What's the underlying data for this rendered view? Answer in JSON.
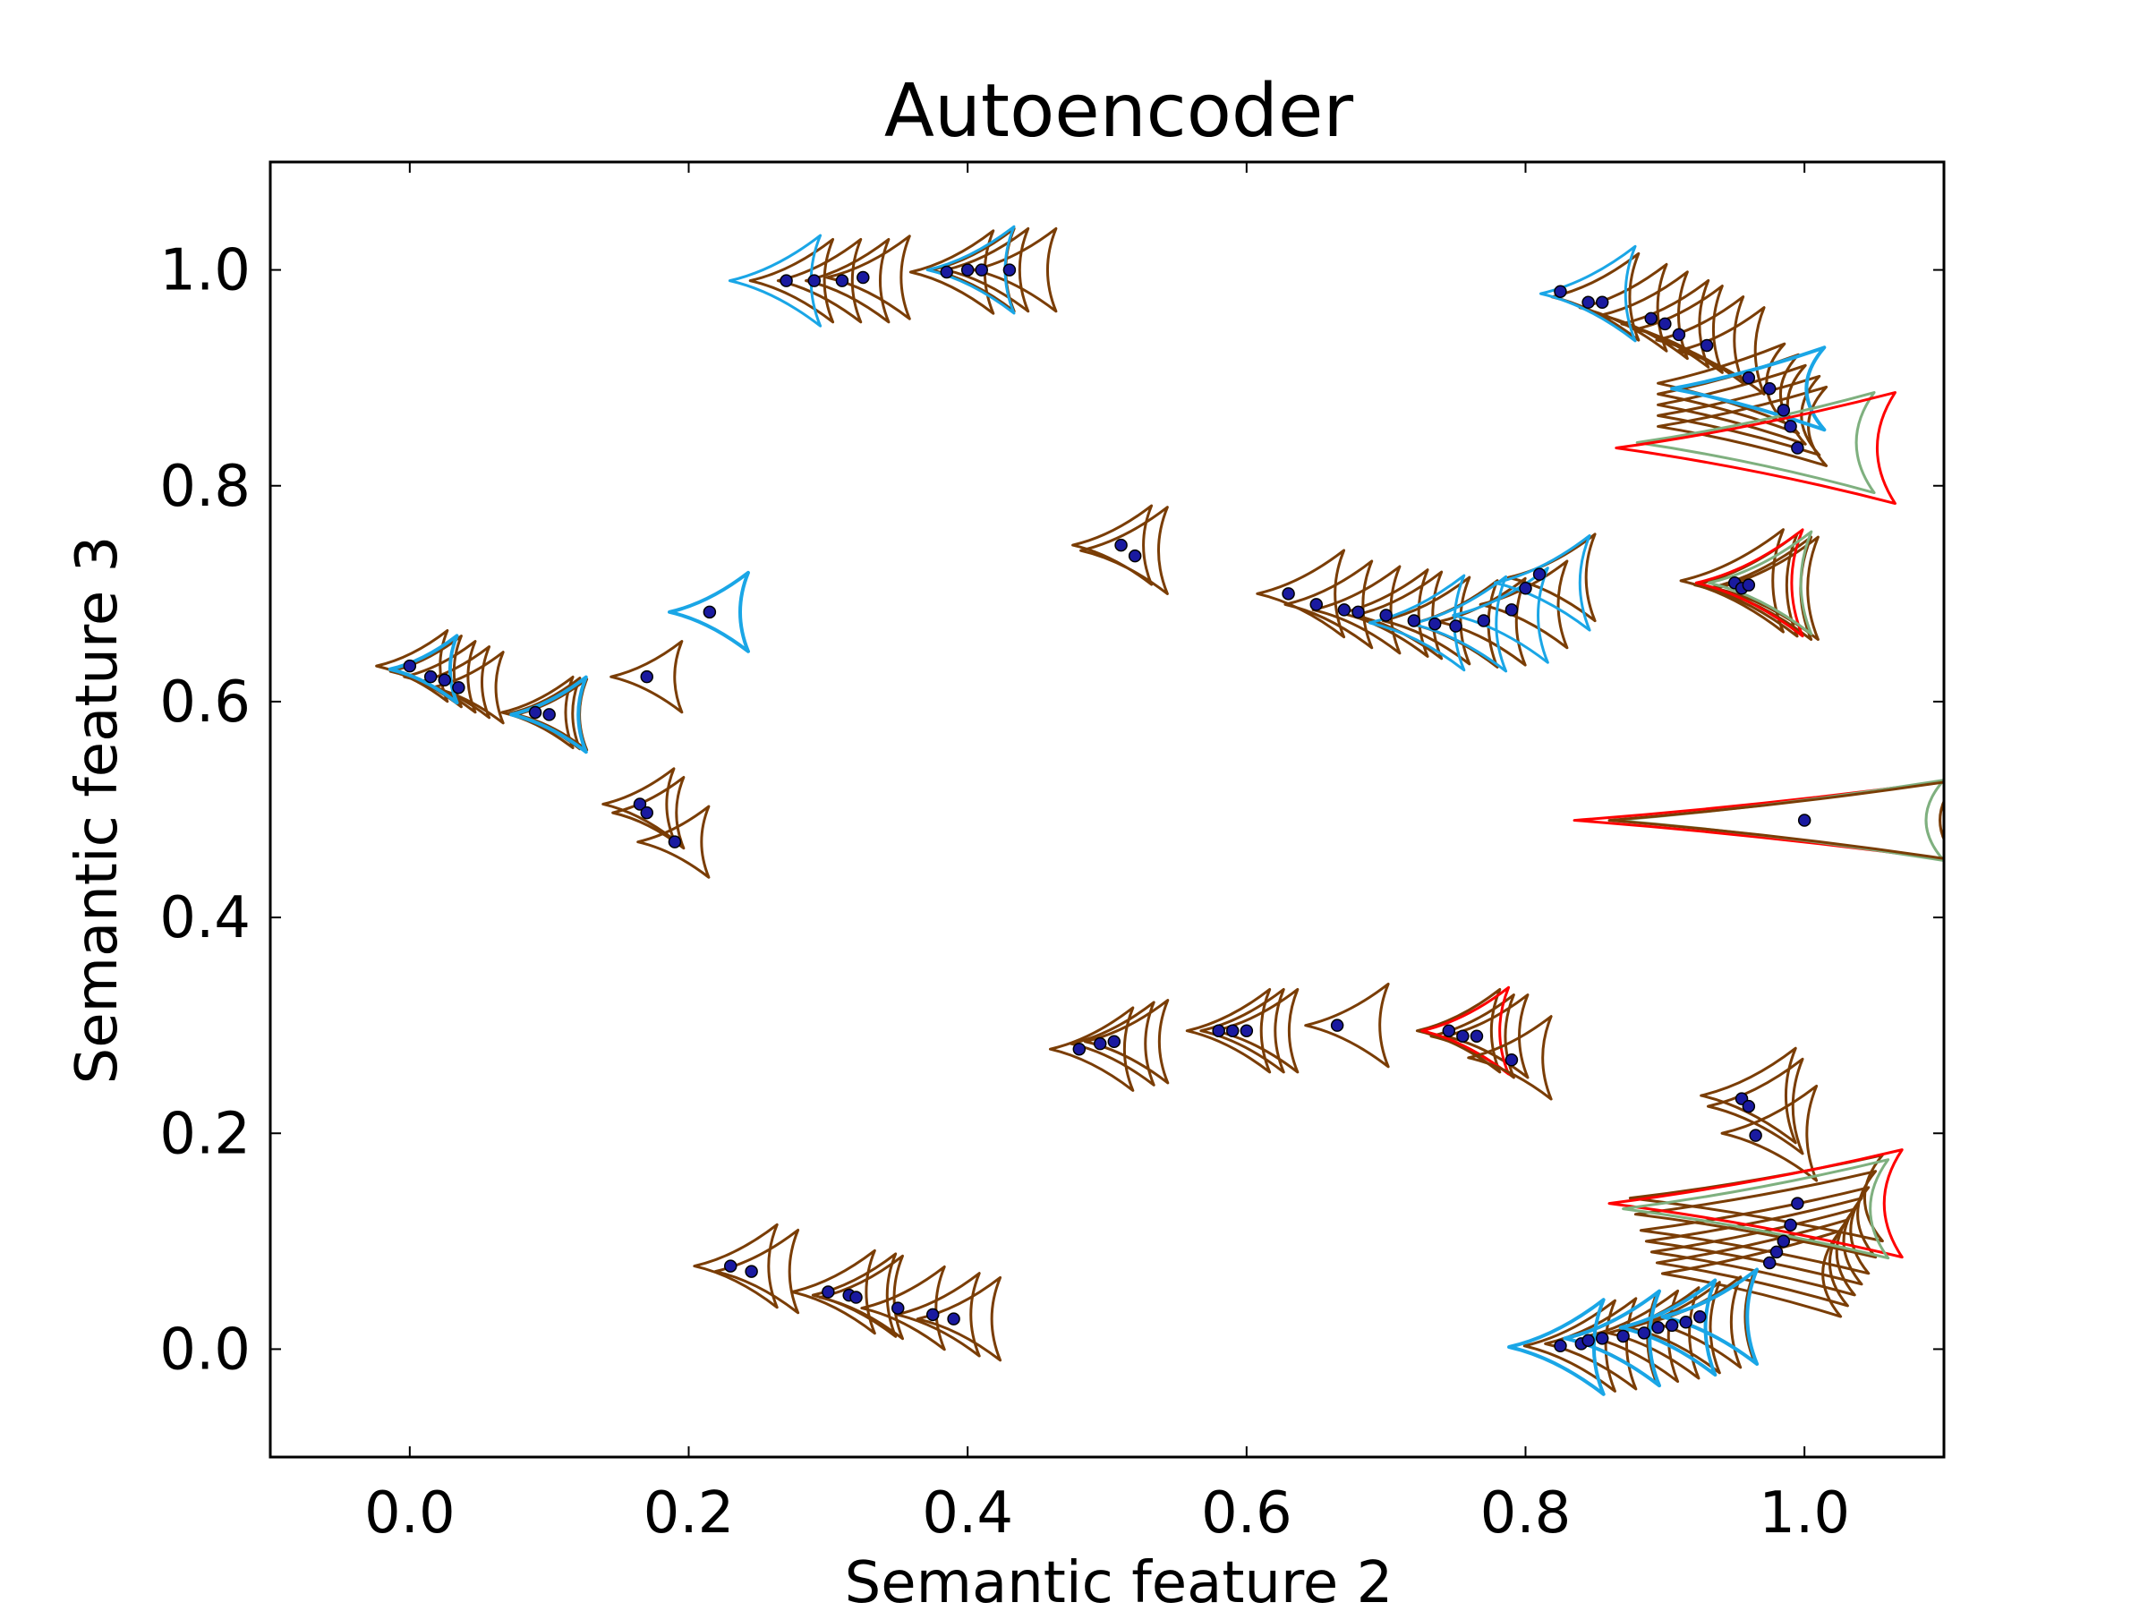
{
  "chart_data": {
    "type": "scatter",
    "title": "Autoencoder",
    "xlabel": "Semantic feature 2",
    "ylabel": "Semantic feature 3",
    "xlim": [
      -0.1,
      1.1
    ],
    "ylim": [
      -0.1,
      1.1
    ],
    "xticks": [
      0.0,
      0.2,
      0.4,
      0.6,
      0.8,
      1.0
    ],
    "yticks": [
      0.0,
      0.2,
      0.4,
      0.6,
      0.8,
      1.0
    ],
    "xtick_labels": [
      "0.0",
      "0.2",
      "0.4",
      "0.6",
      "0.8",
      "1.0"
    ],
    "ytick_labels": [
      "0.0",
      "0.2",
      "0.4",
      "0.6",
      "0.8",
      "1.0"
    ],
    "grid": false,
    "colors": {
      "point": "#1a1aa0",
      "contour_brown": "#7a3d05",
      "contour_blue": "#1aa6e6",
      "contour_red": "#ff0000",
      "contour_green": "#7fb07f"
    },
    "points": [
      {
        "x": 0.27,
        "y": 0.99
      },
      {
        "x": 0.29,
        "y": 0.99
      },
      {
        "x": 0.31,
        "y": 0.99
      },
      {
        "x": 0.325,
        "y": 0.993
      },
      {
        "x": 0.385,
        "y": 0.998
      },
      {
        "x": 0.4,
        "y": 1.0
      },
      {
        "x": 0.41,
        "y": 1.0
      },
      {
        "x": 0.43,
        "y": 1.0
      },
      {
        "x": 0.825,
        "y": 0.98
      },
      {
        "x": 0.845,
        "y": 0.97
      },
      {
        "x": 0.855,
        "y": 0.97
      },
      {
        "x": 0.89,
        "y": 0.955
      },
      {
        "x": 0.9,
        "y": 0.95
      },
      {
        "x": 0.91,
        "y": 0.94
      },
      {
        "x": 0.93,
        "y": 0.93
      },
      {
        "x": 0.96,
        "y": 0.9
      },
      {
        "x": 0.975,
        "y": 0.89
      },
      {
        "x": 0.985,
        "y": 0.87
      },
      {
        "x": 0.99,
        "y": 0.855
      },
      {
        "x": 0.995,
        "y": 0.835
      },
      {
        "x": 0.51,
        "y": 0.745
      },
      {
        "x": 0.52,
        "y": 0.735
      },
      {
        "x": 0.63,
        "y": 0.7
      },
      {
        "x": 0.65,
        "y": 0.69
      },
      {
        "x": 0.67,
        "y": 0.685
      },
      {
        "x": 0.68,
        "y": 0.683
      },
      {
        "x": 0.7,
        "y": 0.68
      },
      {
        "x": 0.72,
        "y": 0.675
      },
      {
        "x": 0.735,
        "y": 0.672
      },
      {
        "x": 0.75,
        "y": 0.67
      },
      {
        "x": 0.77,
        "y": 0.675
      },
      {
        "x": 0.79,
        "y": 0.685
      },
      {
        "x": 0.8,
        "y": 0.705
      },
      {
        "x": 0.81,
        "y": 0.718
      },
      {
        "x": 0.95,
        "y": 0.71
      },
      {
        "x": 0.955,
        "y": 0.705
      },
      {
        "x": 0.96,
        "y": 0.708
      },
      {
        "x": 0.0,
        "y": 0.633
      },
      {
        "x": 0.015,
        "y": 0.623
      },
      {
        "x": 0.025,
        "y": 0.62
      },
      {
        "x": 0.035,
        "y": 0.613
      },
      {
        "x": 0.09,
        "y": 0.59
      },
      {
        "x": 0.1,
        "y": 0.588
      },
      {
        "x": 0.17,
        "y": 0.623
      },
      {
        "x": 0.215,
        "y": 0.683
      },
      {
        "x": 0.165,
        "y": 0.505
      },
      {
        "x": 0.17,
        "y": 0.497
      },
      {
        "x": 0.19,
        "y": 0.47
      },
      {
        "x": 1.0,
        "y": 0.49
      },
      {
        "x": 0.48,
        "y": 0.278
      },
      {
        "x": 0.495,
        "y": 0.283
      },
      {
        "x": 0.505,
        "y": 0.285
      },
      {
        "x": 0.58,
        "y": 0.295
      },
      {
        "x": 0.59,
        "y": 0.295
      },
      {
        "x": 0.6,
        "y": 0.295
      },
      {
        "x": 0.665,
        "y": 0.3
      },
      {
        "x": 0.745,
        "y": 0.295
      },
      {
        "x": 0.755,
        "y": 0.29
      },
      {
        "x": 0.765,
        "y": 0.29
      },
      {
        "x": 0.79,
        "y": 0.268
      },
      {
        "x": 0.955,
        "y": 0.232
      },
      {
        "x": 0.96,
        "y": 0.225
      },
      {
        "x": 0.965,
        "y": 0.198
      },
      {
        "x": 0.995,
        "y": 0.135
      },
      {
        "x": 0.99,
        "y": 0.115
      },
      {
        "x": 0.985,
        "y": 0.1
      },
      {
        "x": 0.98,
        "y": 0.09
      },
      {
        "x": 0.975,
        "y": 0.08
      },
      {
        "x": 0.23,
        "y": 0.077
      },
      {
        "x": 0.245,
        "y": 0.072
      },
      {
        "x": 0.3,
        "y": 0.053
      },
      {
        "x": 0.315,
        "y": 0.05
      },
      {
        "x": 0.32,
        "y": 0.048
      },
      {
        "x": 0.35,
        "y": 0.038
      },
      {
        "x": 0.375,
        "y": 0.032
      },
      {
        "x": 0.39,
        "y": 0.028
      },
      {
        "x": 0.825,
        "y": 0.003
      },
      {
        "x": 0.84,
        "y": 0.005
      },
      {
        "x": 0.845,
        "y": 0.008
      },
      {
        "x": 0.855,
        "y": 0.01
      },
      {
        "x": 0.87,
        "y": 0.012
      },
      {
        "x": 0.885,
        "y": 0.015
      },
      {
        "x": 0.895,
        "y": 0.02
      },
      {
        "x": 0.905,
        "y": 0.022
      },
      {
        "x": 0.915,
        "y": 0.025
      },
      {
        "x": 0.925,
        "y": 0.03
      }
    ]
  }
}
